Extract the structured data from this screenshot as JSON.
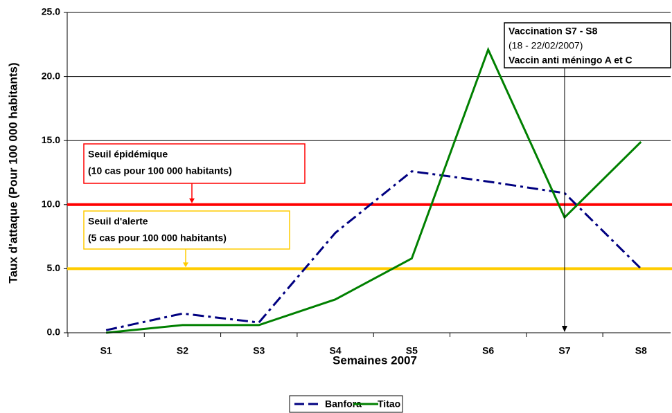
{
  "chart_data": {
    "type": "line",
    "categories": [
      "S1",
      "S2",
      "S3",
      "S4",
      "S5",
      "S6",
      "S7",
      "S8"
    ],
    "series": [
      {
        "name": "Banfora",
        "color": "#000080",
        "values": [
          0.2,
          1.5,
          0.8,
          7.8,
          12.6,
          11.8,
          10.9,
          5.0
        ]
      },
      {
        "name": "Titao",
        "color": "#008000",
        "values": [
          0.0,
          0.6,
          0.6,
          2.6,
          5.8,
          22.1,
          9.0,
          14.9
        ]
      }
    ],
    "ylim": [
      0,
      25
    ],
    "yticks": [
      {
        "value": 0,
        "label": "0.0"
      },
      {
        "value": 5,
        "label": "5.0"
      },
      {
        "value": 10,
        "label": "10.0"
      },
      {
        "value": 15,
        "label": "15.0"
      },
      {
        "value": 20,
        "label": "20.0"
      },
      {
        "value": 25,
        "label": "25.0"
      }
    ],
    "xlabel": "Semaines 2007",
    "ylabel": "Taux d'attaque (Pour 100 000 habitants)",
    "grid": true,
    "legend": "bottom",
    "thresholds": [
      {
        "value": 10,
        "color": "#ff0000",
        "text": [
          "Seuil épidémique",
          "(10 cas pour 100 000 habitants)"
        ]
      },
      {
        "value": 5,
        "color": "#ffcc00",
        "text": [
          "Seuil d'alerte",
          "(5 cas pour 100 000 habitants)"
        ]
      }
    ],
    "annotation": {
      "text": [
        "Vaccination S7 - S8",
        "(18 - 22/02/2007)",
        "Vaccin anti méningo A et C"
      ]
    }
  }
}
